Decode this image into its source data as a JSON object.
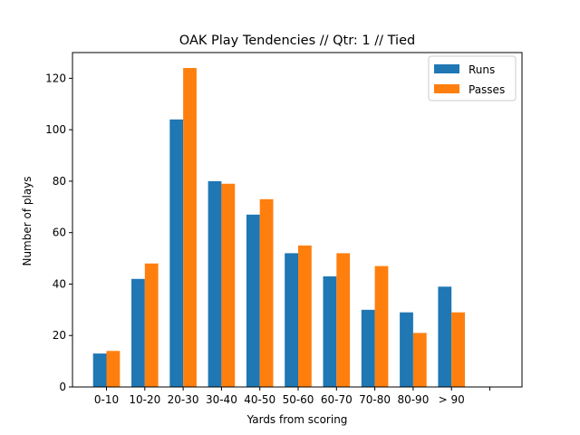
{
  "chart_data": {
    "type": "bar",
    "title": "OAK Play Tendencies // Qtr: 1 // Tied",
    "xlabel": "Yards from scoring",
    "ylabel": "Number of plays",
    "categories": [
      "0-10",
      "10-20",
      "20-30",
      "30-40",
      "40-50",
      "50-60",
      "60-70",
      "70-80",
      "80-90",
      "> 90",
      ""
    ],
    "series": [
      {
        "name": "Runs",
        "color": "#1f77b4",
        "values": [
          13,
          42,
          104,
          80,
          67,
          52,
          43,
          30,
          29,
          39,
          null
        ]
      },
      {
        "name": "Passes",
        "color": "#ff7f0e",
        "values": [
          14,
          48,
          124,
          79,
          73,
          55,
          52,
          47,
          21,
          29,
          null
        ]
      }
    ],
    "ylim": [
      0,
      130
    ],
    "yticks": [
      0,
      20,
      40,
      60,
      80,
      100,
      120
    ],
    "grid": false,
    "legend": "top-right"
  }
}
